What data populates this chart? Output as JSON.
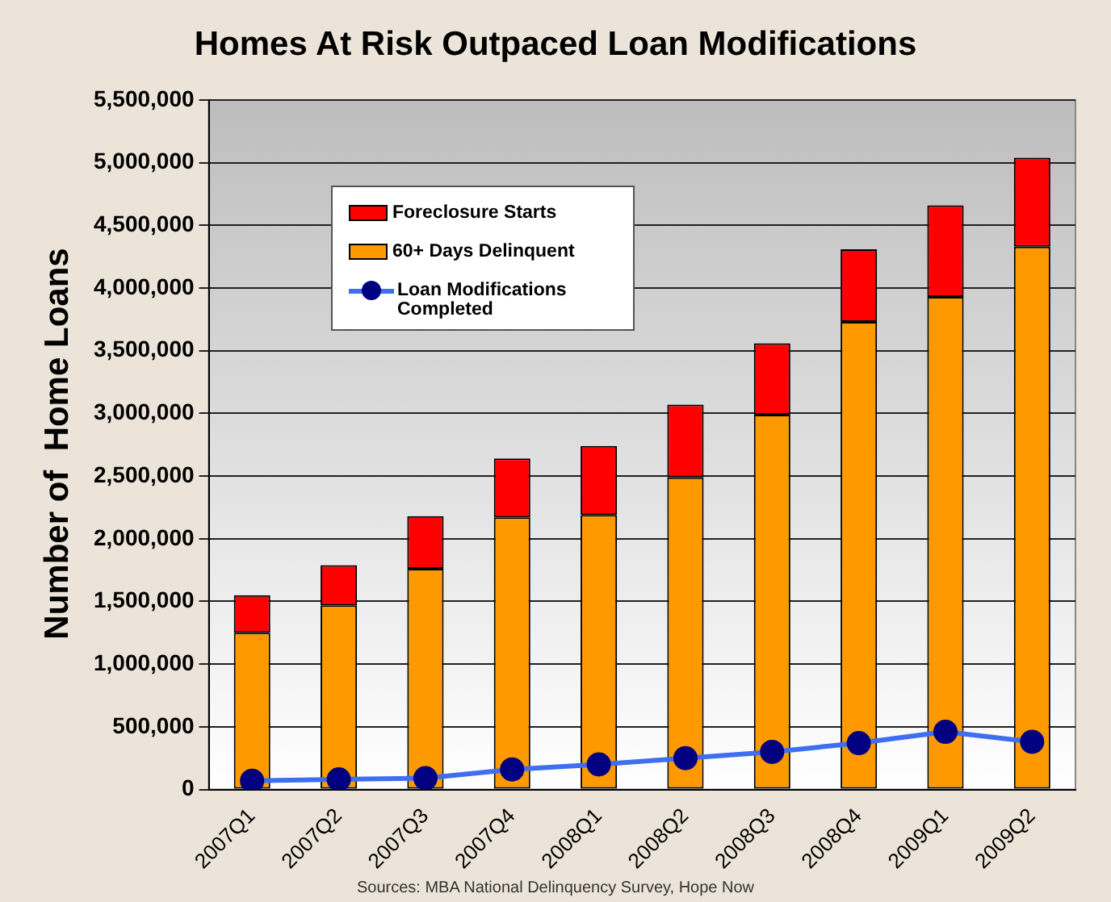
{
  "chart_data": {
    "type": "bar",
    "title": "Homes At Risk Outpaced Loan Modifications",
    "ylabel": "Number of  Home Loans",
    "categories": [
      "2007Q1",
      "2007Q2",
      "2007Q3",
      "2007Q4",
      "2008Q1",
      "2008Q2",
      "2008Q3",
      "2008Q4",
      "2009Q1",
      "2009Q2"
    ],
    "series": [
      {
        "name": "60+ Days Delinquent",
        "color": "#ff9900",
        "values": [
          1250000,
          1470000,
          1760000,
          2170000,
          2190000,
          2490000,
          2990000,
          3730000,
          3930000,
          4330000
        ]
      },
      {
        "name": "Foreclosure Starts",
        "color": "#ff0000",
        "values": [
          300000,
          320000,
          420000,
          470000,
          550000,
          580000,
          570000,
          580000,
          730000,
          710000
        ]
      },
      {
        "name": "Loan Modifications Completed",
        "type": "line",
        "color": "#3f6ff0",
        "values": [
          70000,
          80000,
          90000,
          160000,
          200000,
          250000,
          300000,
          370000,
          460000,
          380000
        ]
      }
    ],
    "stacked": true,
    "ylim": [
      0,
      5500000
    ],
    "yticks": [
      0,
      {
        "value": 500000,
        "label": "500,000"
      },
      {
        "value": 1000000,
        "label": "1,000,000"
      },
      {
        "value": 1500000,
        "label": "1,500,000"
      },
      {
        "value": 2000000,
        "label": "2,000,000"
      },
      {
        "value": 2500000,
        "label": "2,500,000"
      },
      {
        "value": 3000000,
        "label": "3,000,000"
      },
      {
        "value": 3500000,
        "label": "3,500,000"
      },
      {
        "value": 4000000,
        "label": "4,000,000"
      },
      {
        "value": 4500000,
        "label": "4,500,000"
      },
      {
        "value": 5000000,
        "label": "5,000,000"
      },
      {
        "value": 5500000,
        "label": "5,500,000"
      }
    ],
    "grid": "y",
    "legend": "top left",
    "marker": "circle",
    "line_style": "solid",
    "annotations": [
      "Sources: MBA National Delinquency Survey, Hope Now"
    ]
  }
}
